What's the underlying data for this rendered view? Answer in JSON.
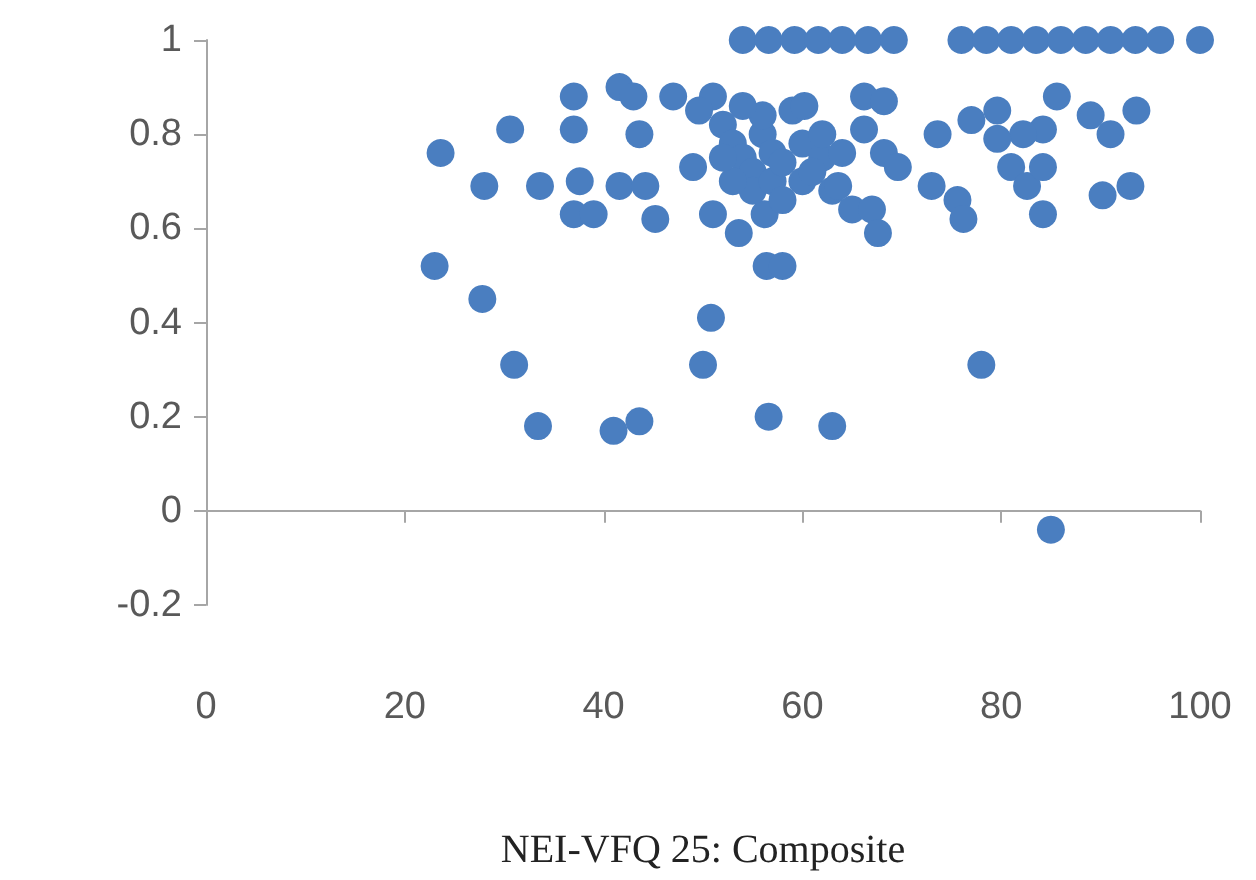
{
  "chart_data": {
    "type": "scatter",
    "xlabel": "NEI-VFQ 25: Composite",
    "xlim": [
      0,
      100
    ],
    "xticks": [
      0,
      20,
      40,
      60,
      80,
      100
    ],
    "ylim": [
      -0.2,
      1
    ],
    "yticks": [
      -0.2,
      0,
      0.2,
      0.4,
      0.6,
      0.8,
      1
    ],
    "marker": "circle",
    "series": [
      {
        "color": "#4a7ec0",
        "x": [
          23,
          27.8,
          31,
          33.4,
          41,
          43.6,
          50.8,
          50,
          56.6,
          63,
          56.4,
          58,
          78,
          85,
          54,
          56.6,
          59.2,
          61.6,
          64,
          66.6,
          69.2,
          76,
          78.5,
          81,
          83.5,
          86,
          88.5,
          91,
          93.5,
          96,
          100,
          23.6,
          30.6,
          28,
          37,
          37,
          33.6,
          37.6,
          37,
          39,
          41.6,
          43,
          47,
          43.6,
          41.6,
          44.2,
          45.2,
          49,
          51,
          49.6,
          59,
          51,
          53.6,
          56.2,
          52,
          53,
          54,
          55,
          56,
          57,
          55,
          57,
          58,
          53,
          52,
          56,
          54,
          58,
          60,
          60,
          62,
          61,
          63,
          64,
          65,
          62,
          66.2,
          68.2,
          60.2,
          66.2,
          68.2,
          69.6,
          63.6,
          67,
          67.6,
          73,
          75.6,
          76.2,
          73.6,
          77,
          79.6,
          81,
          82.6,
          84.2,
          85.6,
          84.2,
          84.2,
          89,
          91,
          93.6,
          90.2,
          93,
          82.2,
          79.6
        ],
        "values": [
          0.52,
          0.45,
          0.31,
          0.18,
          0.17,
          0.19,
          0.41,
          0.31,
          0.2,
          0.18,
          0.52,
          0.52,
          0.31,
          -0.04,
          1,
          1,
          1,
          1,
          1,
          1,
          1,
          1,
          1,
          1,
          1,
          1,
          1,
          1,
          1,
          1,
          1,
          0.76,
          0.81,
          0.69,
          0.88,
          0.81,
          0.69,
          0.7,
          0.63,
          0.63,
          0.9,
          0.88,
          0.88,
          0.8,
          0.69,
          0.69,
          0.62,
          0.73,
          0.88,
          0.85,
          0.85,
          0.63,
          0.59,
          0.63,
          0.82,
          0.78,
          0.75,
          0.72,
          0.8,
          0.76,
          0.68,
          0.7,
          0.74,
          0.7,
          0.75,
          0.84,
          0.86,
          0.66,
          0.78,
          0.7,
          0.75,
          0.72,
          0.68,
          0.76,
          0.64,
          0.8,
          0.88,
          0.87,
          0.86,
          0.81,
          0.76,
          0.73,
          0.69,
          0.64,
          0.59,
          0.69,
          0.66,
          0.62,
          0.8,
          0.83,
          0.85,
          0.73,
          0.69,
          0.73,
          0.88,
          0.81,
          0.63,
          0.84,
          0.8,
          0.85,
          0.67,
          0.69,
          0.8,
          0.79
        ]
      }
    ]
  }
}
